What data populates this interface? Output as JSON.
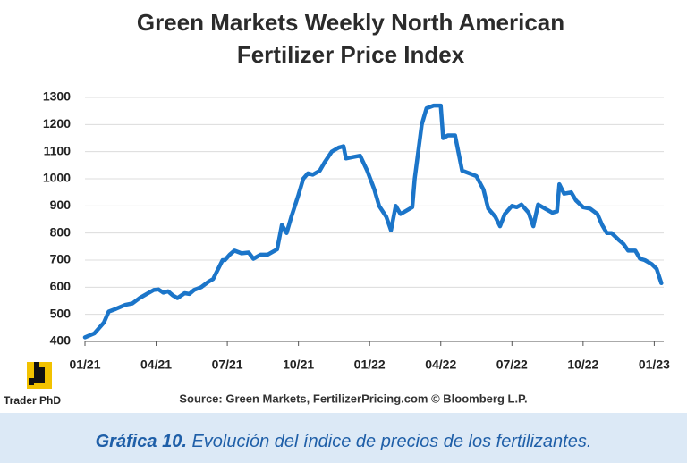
{
  "chart_data": {
    "type": "line",
    "title": [
      "Green Markets Weekly North American",
      "Fertilizer Price Index"
    ],
    "source": "Source: Green Markets, FertilizerPricing.com © Bloomberg L.P.",
    "logo": "Trader PhD",
    "caption_label": "Gráfica 10.",
    "caption_text": "Evolución del índice de precios de los fertilizantes.",
    "color": "#1b75c9",
    "grid": true,
    "xlim": [
      0,
      24.4
    ],
    "ylim": [
      400,
      1300
    ],
    "yticks": [
      400,
      500,
      600,
      700,
      800,
      900,
      1000,
      1100,
      1200,
      1300
    ],
    "xticks": [
      {
        "value": 0,
        "label": "01/21"
      },
      {
        "value": 3,
        "label": "04/21"
      },
      {
        "value": 6,
        "label": "07/21"
      },
      {
        "value": 9,
        "label": "10/21"
      },
      {
        "value": 12,
        "label": "01/22"
      },
      {
        "value": 15,
        "label": "04/22"
      },
      {
        "value": 18,
        "label": "07/22"
      },
      {
        "value": 21,
        "label": "10/22"
      },
      {
        "value": 24,
        "label": "01/23"
      }
    ],
    "x": [
      0,
      0.4,
      0.8,
      1.0,
      1.3,
      1.7,
      2.0,
      2.3,
      2.6,
      2.9,
      3.1,
      3.3,
      3.5,
      3.7,
      3.9,
      4.2,
      4.4,
      4.6,
      4.9,
      5.2,
      5.4,
      5.6,
      5.8,
      5.9,
      6.1,
      6.3,
      6.6,
      6.9,
      7.1,
      7.4,
      7.7,
      8.1,
      8.3,
      8.5,
      8.7,
      9.0,
      9.2,
      9.4,
      9.6,
      9.9,
      10.1,
      10.4,
      10.7,
      10.9,
      11.0,
      11.3,
      11.6,
      11.9,
      12.2,
      12.4,
      12.7,
      12.9,
      13.1,
      13.3,
      13.5,
      13.8,
      13.9,
      14.2,
      14.4,
      14.7,
      15.0,
      15.1,
      15.3,
      15.6,
      15.9,
      16.2,
      16.5,
      16.8,
      17.0,
      17.3,
      17.5,
      17.7,
      18.0,
      18.2,
      18.4,
      18.7,
      18.9,
      19.1,
      19.4,
      19.7,
      19.9,
      20.0,
      20.2,
      20.5,
      20.7,
      21.0,
      21.3,
      21.6,
      21.8,
      22.0,
      22.2,
      22.5,
      22.7,
      22.9,
      23.2,
      23.4,
      23.6,
      23.9,
      24.1,
      24.3
    ],
    "values": [
      415,
      430,
      470,
      510,
      520,
      535,
      540,
      560,
      575,
      590,
      592,
      580,
      585,
      570,
      560,
      578,
      575,
      590,
      600,
      620,
      630,
      665,
      700,
      700,
      720,
      735,
      725,
      728,
      705,
      720,
      720,
      740,
      830,
      800,
      860,
      940,
      1000,
      1020,
      1015,
      1030,
      1060,
      1100,
      1115,
      1120,
      1075,
      1080,
      1085,
      1030,
      960,
      900,
      860,
      810,
      900,
      870,
      880,
      895,
      1000,
      1200,
      1260,
      1270,
      1270,
      1150,
      1160,
      1160,
      1030,
      1020,
      1010,
      960,
      890,
      860,
      825,
      870,
      900,
      895,
      905,
      875,
      825,
      905,
      890,
      875,
      880,
      980,
      945,
      950,
      920,
      895,
      890,
      870,
      830,
      800,
      800,
      775,
      760,
      735,
      735,
      705,
      700,
      685,
      668,
      615
    ]
  }
}
